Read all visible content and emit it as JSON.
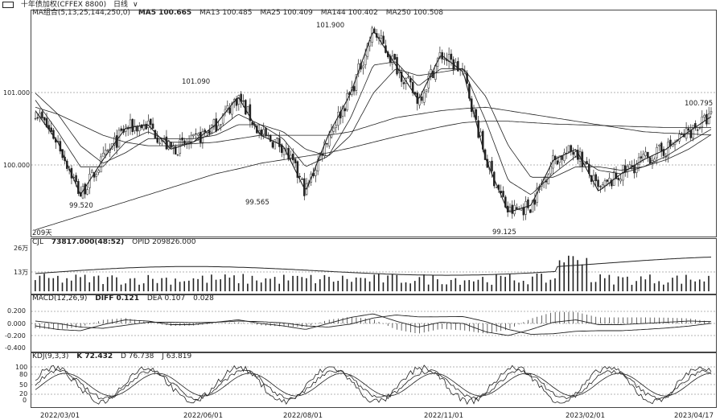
{
  "titlebar": {
    "icon": "window-icon",
    "title": "十年债加权(CFFEX 8800)",
    "period": "日线",
    "period_caret": "∨"
  },
  "main_pane": {
    "indicator": "MA组合(5,13,25,144,250,0)",
    "ma5": "MA5 100.665",
    "ma13": "MA13 100.485",
    "ma25": "MA25 100.409",
    "ma144": "MA144 100.402",
    "ma250": "MA250 100.508",
    "y_ticks": [
      "101.000",
      "100.000"
    ],
    "annotations": [
      "101.900",
      "101.090",
      "99.520",
      "99.565",
      "99.125",
      "100.795"
    ],
    "corner_label": "209天"
  },
  "volume_pane": {
    "indicator": "CJL",
    "vol_value": "73817.000(48:52)",
    "opid_value": "OPID 209826.000",
    "y_ticks": [
      "26万",
      "13万"
    ]
  },
  "macd_pane": {
    "indicator": "MACD(12,26,9)",
    "diff": "DIFF 0.121",
    "dea": "DEA 0.107",
    "macd_value": "0.028",
    "y_ticks": [
      "0.200",
      "0.000",
      "-0.200",
      "-0.400"
    ]
  },
  "kdj_pane": {
    "indicator": "KDJ(9,3,3)",
    "k": "K 72.432",
    "d": "D 76.738",
    "j": "J 63.819",
    "y_ticks": [
      "100",
      "80",
      "50",
      "20",
      "0"
    ]
  },
  "x_axis_labels": [
    "2022/03/01",
    "2022/06/01",
    "2022/08/01",
    "2022/11/01",
    "2023/02/01",
    "2023/04/17"
  ],
  "colors": {
    "line": "#222222",
    "grid": "#999999",
    "background": "#ffffff"
  },
  "chart_data": {
    "type": "line",
    "title": "十年债加权(CFFEX 8800)",
    "subtitle": "日线",
    "x": [
      "2022/01/10",
      "2022/02/01",
      "2022/02/20",
      "2022/03/01",
      "2022/03/20",
      "2022/04/05",
      "2022/04/20",
      "2022/05/05",
      "2022/05/20",
      "2022/06/01",
      "2022/06/20",
      "2022/07/05",
      "2022/07/20",
      "2022/08/01",
      "2022/08/20",
      "2022/09/05",
      "2022/09/20",
      "2022/10/05",
      "2022/10/20",
      "2022/11/01",
      "2022/11/20",
      "2022/12/05",
      "2022/12/20",
      "2023/01/05",
      "2023/01/20",
      "2023/02/01",
      "2023/02/20",
      "2023/03/05",
      "2023/03/20",
      "2023/04/05",
      "2023/04/17"
    ],
    "series": [
      {
        "name": "MA5",
        "values": [
          100.75,
          100.3,
          99.55,
          100.05,
          100.5,
          100.55,
          100.2,
          100.3,
          100.55,
          100.95,
          100.4,
          100.25,
          99.6,
          100.4,
          101.0,
          101.9,
          101.4,
          100.9,
          101.55,
          101.3,
          100.05,
          99.3,
          99.4,
          100.05,
          100.2,
          99.6,
          99.85,
          100.05,
          100.2,
          100.45,
          100.665
        ]
      },
      {
        "name": "MA13",
        "values": [
          100.9,
          100.45,
          99.95,
          99.95,
          100.3,
          100.45,
          100.3,
          100.3,
          100.45,
          100.7,
          100.55,
          100.35,
          99.95,
          100.1,
          100.65,
          101.4,
          101.45,
          101.1,
          101.35,
          101.35,
          100.6,
          99.75,
          99.55,
          99.85,
          100.1,
          99.9,
          99.85,
          99.95,
          100.1,
          100.3,
          100.485
        ]
      },
      {
        "name": "MA25",
        "values": [
          101.0,
          100.7,
          100.25,
          100.0,
          100.15,
          100.35,
          100.35,
          100.35,
          100.4,
          100.55,
          100.55,
          100.45,
          100.2,
          100.1,
          100.4,
          101.0,
          101.35,
          101.25,
          101.3,
          101.35,
          100.95,
          100.25,
          99.8,
          99.8,
          99.95,
          99.95,
          99.9,
          99.95,
          100.05,
          100.2,
          100.409
        ]
      },
      {
        "name": "MA144",
        "values": [
          100.8,
          100.7,
          100.55,
          100.4,
          100.3,
          100.25,
          100.25,
          100.28,
          100.3,
          100.35,
          100.4,
          100.4,
          100.4,
          100.4,
          100.45,
          100.55,
          100.65,
          100.7,
          100.75,
          100.78,
          100.8,
          100.75,
          100.7,
          100.65,
          100.6,
          100.55,
          100.5,
          100.45,
          100.43,
          100.42,
          100.402
        ]
      },
      {
        "name": "MA250",
        "values": [
          99.05,
          99.15,
          99.25,
          99.35,
          99.45,
          99.55,
          99.65,
          99.75,
          99.85,
          99.92,
          100.0,
          100.05,
          100.1,
          100.15,
          100.22,
          100.3,
          100.38,
          100.45,
          100.52,
          100.58,
          100.6,
          100.6,
          100.58,
          100.56,
          100.55,
          100.54,
          100.53,
          100.52,
          100.51,
          100.51,
          100.508
        ]
      }
    ],
    "annotations": [
      {
        "label": "101.900",
        "x": "2022/09/05",
        "y": 101.9
      },
      {
        "label": "101.090",
        "x": "2022/05/25",
        "y": 101.09
      },
      {
        "label": "99.520",
        "x": "2022/02/20",
        "y": 99.52
      },
      {
        "label": "99.565",
        "x": "2022/07/20",
        "y": 99.565
      },
      {
        "label": "99.125",
        "x": "2022/12/05",
        "y": 99.125
      },
      {
        "label": "100.795",
        "x": "2023/04/12",
        "y": 100.795
      }
    ],
    "y_ticks": [
      101.0,
      100.0
    ],
    "ylim": [
      99.0,
      102.1
    ],
    "grid": true
  }
}
